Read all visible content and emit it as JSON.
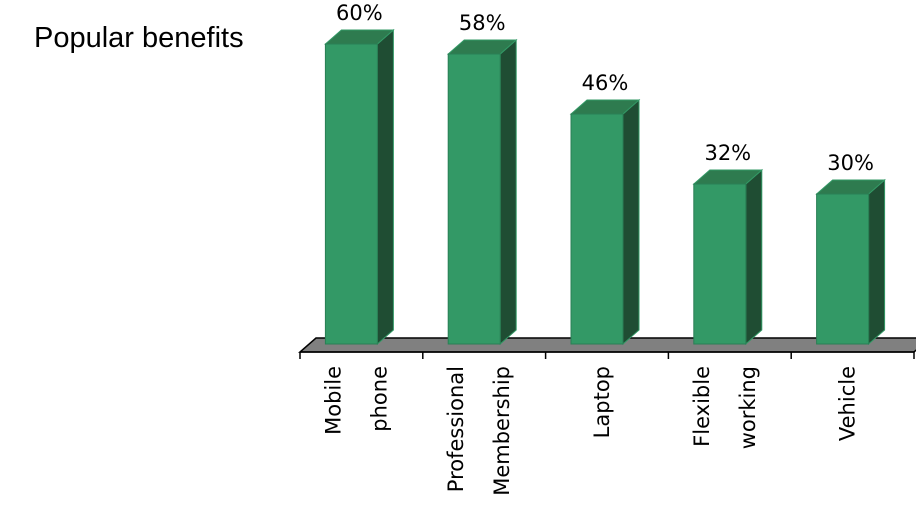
{
  "chart_data": {
    "type": "bar",
    "style": "3d",
    "title": "Popular benefits",
    "categories": [
      [
        "Mobile",
        "phone"
      ],
      [
        "Professional",
        "Membership"
      ],
      [
        "Laptop"
      ],
      [
        "Flexible",
        "working"
      ],
      [
        "Vehicle"
      ]
    ],
    "values": [
      60,
      58,
      46,
      32,
      30
    ],
    "data_labels": [
      "60%",
      "58%",
      "46%",
      "32%",
      "30%"
    ],
    "unit": "%",
    "ylim": [
      0,
      60
    ],
    "grid": false,
    "legend": "none",
    "colors": {
      "bar_front": "#339966",
      "bar_top": "#2E7B4F",
      "bar_side": "#1F4D33",
      "floor": "#808080"
    }
  }
}
